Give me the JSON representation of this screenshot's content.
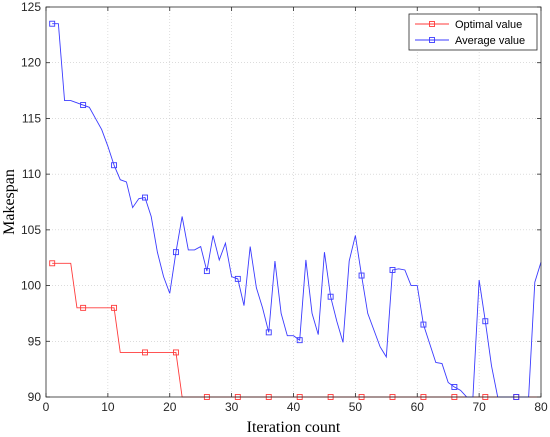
{
  "chart_data": {
    "type": "line",
    "title": "",
    "xlabel": "Iteration count",
    "ylabel": "Makespan",
    "xlim": [
      0,
      80
    ],
    "ylim": [
      90,
      125
    ],
    "xticks": [
      0,
      10,
      20,
      30,
      40,
      50,
      60,
      70,
      80
    ],
    "yticks": [
      90,
      95,
      100,
      105,
      110,
      115,
      120,
      125
    ],
    "grid": true,
    "legend_position": "top-right",
    "series": [
      {
        "name": "Optimal value",
        "color": "#ff3b3b",
        "marker": "square",
        "marker_every": 5,
        "x": [
          1,
          2,
          3,
          4,
          5,
          6,
          7,
          8,
          9,
          10,
          11,
          12,
          13,
          14,
          15,
          16,
          17,
          18,
          19,
          20,
          21,
          22,
          23,
          24,
          25,
          26,
          27,
          28,
          29,
          30,
          31,
          32,
          33,
          34,
          35,
          36,
          37,
          38,
          39,
          40,
          41,
          42,
          43,
          44,
          45,
          46,
          47,
          48,
          49,
          50,
          51,
          52,
          53,
          54,
          55,
          56,
          57,
          58,
          59,
          60,
          61,
          62,
          63,
          64,
          65,
          66,
          67,
          68,
          69,
          70,
          71,
          72,
          73,
          74,
          75,
          76,
          77,
          78,
          79,
          80
        ],
        "y": [
          102,
          102,
          102,
          102,
          98,
          98,
          98,
          98,
          98,
          98,
          98,
          94,
          94,
          94,
          94,
          94,
          94,
          94,
          94,
          94,
          94,
          90,
          90,
          90,
          90,
          90,
          90,
          90,
          90,
          90,
          90,
          90,
          90,
          90,
          90,
          90,
          90,
          90,
          90,
          90,
          90,
          90,
          90,
          90,
          90,
          90,
          90,
          90,
          90,
          90,
          90,
          90,
          90,
          90,
          90,
          90,
          90,
          90,
          90,
          90,
          90,
          90,
          90,
          90,
          90,
          90,
          90,
          90,
          90,
          90,
          90,
          90,
          90,
          90,
          90,
          90,
          90,
          90,
          90,
          90
        ]
      },
      {
        "name": "Average value",
        "color": "#3b3bff",
        "marker": "square",
        "marker_every": 5,
        "x": [
          1,
          2,
          3,
          4,
          5,
          6,
          7,
          8,
          9,
          10,
          11,
          12,
          13,
          14,
          15,
          16,
          17,
          18,
          19,
          20,
          21,
          22,
          23,
          24,
          25,
          26,
          27,
          28,
          29,
          30,
          31,
          32,
          33,
          34,
          35,
          36,
          37,
          38,
          39,
          40,
          41,
          42,
          43,
          44,
          45,
          46,
          47,
          48,
          49,
          50,
          51,
          52,
          53,
          54,
          55,
          56,
          57,
          58,
          59,
          60,
          61,
          62,
          63,
          64,
          65,
          66,
          67,
          68,
          69,
          70,
          71,
          72,
          73,
          74,
          75,
          76,
          77,
          78,
          79,
          80
        ],
        "y": [
          123.5,
          123.5,
          116.6,
          116.6,
          116.4,
          116.2,
          116.0,
          115.0,
          114.0,
          112.5,
          110.8,
          109.5,
          109.3,
          107.0,
          107.8,
          107.9,
          106.2,
          103.0,
          100.8,
          99.3,
          103.0,
          106.2,
          103.2,
          103.2,
          103.5,
          101.3,
          104.5,
          102.3,
          103.8,
          100.8,
          100.6,
          98.2,
          103.5,
          99.8,
          98.0,
          95.8,
          102.2,
          97.5,
          95.5,
          95.5,
          95.1,
          102.3,
          97.5,
          95.6,
          103.0,
          99.0,
          96.8,
          94.9,
          102.2,
          104.5,
          100.9,
          97.5,
          96.0,
          94.5,
          93.6,
          101.4,
          101.5,
          101.4,
          100.0,
          100.0,
          96.5,
          94.8,
          93.1,
          93.0,
          91.3,
          90.9,
          90.6,
          90.0,
          90.0,
          100.5,
          96.8,
          92.8,
          90.0,
          90.0,
          90.0,
          90.0,
          90.0,
          90.0,
          100.3,
          102.1
        ]
      }
    ]
  }
}
